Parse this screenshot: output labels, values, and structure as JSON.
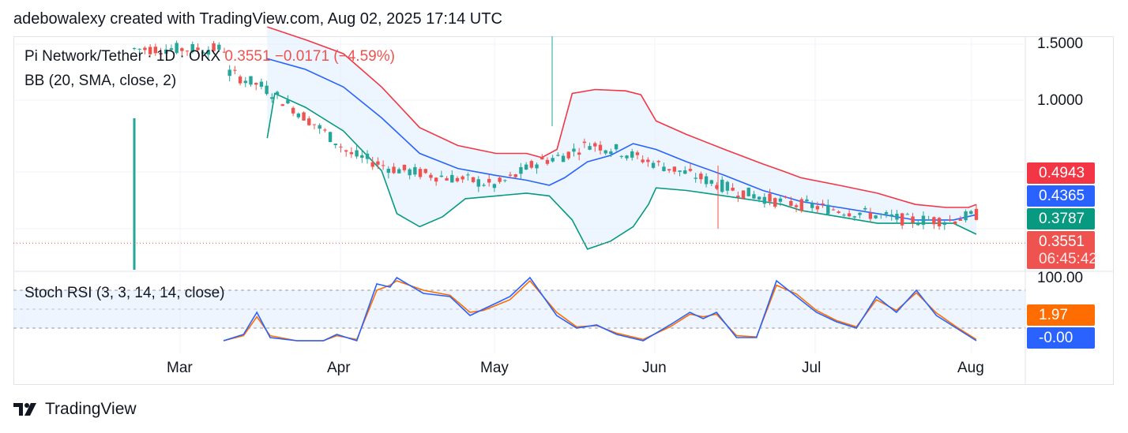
{
  "header": {
    "credit": "adebowalexy created with TradingView.com, Aug 02, 2025 17:14 UTC"
  },
  "legend": {
    "symbol": "Pi Network/Tether · 1D · OKX",
    "price": "0.3551",
    "change": "−0.0171 (−4.59%)",
    "bb": "BB (20, SMA, close, 2)",
    "stoch": "Stoch RSI (3, 3, 14, 14, close)"
  },
  "price_axis": {
    "ticks": [
      "1.5000",
      "1.0000"
    ]
  },
  "stoch_axis": {
    "top": "100.00"
  },
  "tags": {
    "bb_upper": "0.4943",
    "bb_middle": "0.4365",
    "bb_lower": "0.3787",
    "last_price": "0.3551",
    "countdown": "06:45:42",
    "stoch_d": "1.97",
    "stoch_k": "-0.00"
  },
  "colors": {
    "up": "#26a69a",
    "down": "#ef5350",
    "bb_upper": "#f23645",
    "bb_basis": "#2962ff",
    "bb_lower": "#089981",
    "k_line": "#2962ff",
    "d_line": "#ff6d00",
    "band_fill": "#e3effd"
  },
  "time_axis": [
    "Mar",
    "Apr",
    "May",
    "Jun",
    "Jul",
    "Aug"
  ],
  "brand": "TradingView",
  "chart_data": {
    "type": "candlestick",
    "title": "Pi Network/Tether · 1D · OKX",
    "x_range": [
      "2025-02-20",
      "2025-08-02"
    ],
    "y_scale": "log",
    "y_range": [
      0.34,
      1.65
    ],
    "price_ticks": [
      1.5,
      1.0
    ],
    "series": [
      {
        "name": "BB upper (20, SMA, close, 2)",
        "points": [
          [
            10,
            1.7
          ],
          [
            20,
            1.55
          ],
          [
            30,
            1.4
          ],
          [
            40,
            1.1
          ],
          [
            50,
            0.82
          ],
          [
            60,
            0.72
          ],
          [
            70,
            0.68
          ],
          [
            78,
            0.68
          ],
          [
            82,
            0.66
          ],
          [
            86,
            0.7
          ],
          [
            90,
            1.05
          ],
          [
            96,
            1.08
          ],
          [
            104,
            1.07
          ],
          [
            108,
            1.04
          ],
          [
            112,
            0.86
          ],
          [
            120,
            0.78
          ],
          [
            130,
            0.7
          ],
          [
            140,
            0.63
          ],
          [
            145,
            0.6
          ],
          [
            150,
            0.57
          ],
          [
            160,
            0.54
          ],
          [
            170,
            0.51
          ],
          [
            180,
            0.47
          ],
          [
            188,
            0.46
          ],
          [
            194,
            0.46
          ],
          [
            196,
            0.47
          ]
        ]
      },
      {
        "name": "BB basis (20, SMA, close, 2)",
        "points": [
          [
            10,
            1.35
          ],
          [
            20,
            1.25
          ],
          [
            30,
            1.1
          ],
          [
            40,
            0.88
          ],
          [
            50,
            0.68
          ],
          [
            60,
            0.61
          ],
          [
            70,
            0.58
          ],
          [
            78,
            0.56
          ],
          [
            84,
            0.54
          ],
          [
            88,
            0.57
          ],
          [
            94,
            0.64
          ],
          [
            100,
            0.67
          ],
          [
            106,
            0.73
          ],
          [
            112,
            0.7
          ],
          [
            120,
            0.64
          ],
          [
            130,
            0.58
          ],
          [
            140,
            0.52
          ],
          [
            145,
            0.5
          ],
          [
            150,
            0.48
          ],
          [
            160,
            0.46
          ],
          [
            170,
            0.44
          ],
          [
            180,
            0.42
          ],
          [
            190,
            0.42
          ],
          [
            196,
            0.4365
          ]
        ]
      },
      {
        "name": "BB lower (20, SMA, close, 2)",
        "points": [
          [
            10,
            0.76
          ],
          [
            12,
            1.05
          ],
          [
            20,
            0.95
          ],
          [
            30,
            0.8
          ],
          [
            40,
            0.6
          ],
          [
            44,
            0.44
          ],
          [
            50,
            0.4
          ],
          [
            56,
            0.43
          ],
          [
            62,
            0.49
          ],
          [
            70,
            0.5
          ],
          [
            78,
            0.51
          ],
          [
            84,
            0.5
          ],
          [
            90,
            0.42
          ],
          [
            94,
            0.34
          ],
          [
            100,
            0.36
          ],
          [
            106,
            0.4
          ],
          [
            110,
            0.47
          ],
          [
            112,
            0.53
          ],
          [
            120,
            0.52
          ],
          [
            130,
            0.5
          ],
          [
            140,
            0.48
          ],
          [
            145,
            0.47
          ],
          [
            150,
            0.45
          ],
          [
            160,
            0.43
          ],
          [
            170,
            0.41
          ],
          [
            180,
            0.41
          ],
          [
            190,
            0.41
          ],
          [
            196,
            0.3787
          ]
        ]
      },
      {
        "name": "Stoch RSI %K",
        "points": [
          [
            0,
            0
          ],
          [
            6,
            10
          ],
          [
            10,
            45
          ],
          [
            14,
            5
          ],
          [
            22,
            0
          ],
          [
            30,
            0
          ],
          [
            34,
            10
          ],
          [
            40,
            0
          ],
          [
            46,
            90
          ],
          [
            50,
            85
          ],
          [
            52,
            100
          ],
          [
            60,
            75
          ],
          [
            68,
            70
          ],
          [
            74,
            40
          ],
          [
            78,
            50
          ],
          [
            86,
            70
          ],
          [
            92,
            100
          ],
          [
            100,
            40
          ],
          [
            106,
            20
          ],
          [
            112,
            25
          ],
          [
            118,
            10
          ],
          [
            126,
            0
          ],
          [
            134,
            25
          ],
          [
            140,
            45
          ],
          [
            144,
            35
          ],
          [
            148,
            45
          ],
          [
            154,
            5
          ],
          [
            160,
            5
          ],
          [
            166,
            95
          ],
          [
            172,
            70
          ],
          [
            178,
            45
          ],
          [
            184,
            30
          ],
          [
            190,
            20
          ],
          [
            196,
            70
          ],
          [
            202,
            45
          ],
          [
            208,
            80
          ],
          [
            214,
            40
          ],
          [
            220,
            20
          ],
          [
            226,
            0
          ]
        ]
      },
      {
        "name": "Stoch RSI %D",
        "points": [
          [
            0,
            0
          ],
          [
            6,
            8
          ],
          [
            10,
            38
          ],
          [
            14,
            8
          ],
          [
            22,
            0
          ],
          [
            30,
            0
          ],
          [
            34,
            8
          ],
          [
            40,
            2
          ],
          [
            46,
            80
          ],
          [
            50,
            88
          ],
          [
            52,
            95
          ],
          [
            60,
            80
          ],
          [
            68,
            72
          ],
          [
            74,
            45
          ],
          [
            78,
            48
          ],
          [
            86,
            65
          ],
          [
            92,
            95
          ],
          [
            100,
            45
          ],
          [
            106,
            22
          ],
          [
            112,
            24
          ],
          [
            118,
            12
          ],
          [
            126,
            2
          ],
          [
            134,
            22
          ],
          [
            140,
            42
          ],
          [
            144,
            38
          ],
          [
            148,
            42
          ],
          [
            154,
            8
          ],
          [
            160,
            6
          ],
          [
            166,
            88
          ],
          [
            172,
            74
          ],
          [
            178,
            48
          ],
          [
            184,
            32
          ],
          [
            190,
            22
          ],
          [
            196,
            65
          ],
          [
            202,
            48
          ],
          [
            208,
            76
          ],
          [
            214,
            44
          ],
          [
            220,
            22
          ],
          [
            226,
            1.97
          ]
        ]
      }
    ],
    "stoch_rsi": {
      "k": -0.0,
      "d": 1.97,
      "upper_band": 80,
      "lower_band": 20,
      "range": [
        0,
        100
      ]
    },
    "last": {
      "price": 0.3551,
      "change": -0.0171,
      "change_pct": -4.59
    }
  }
}
